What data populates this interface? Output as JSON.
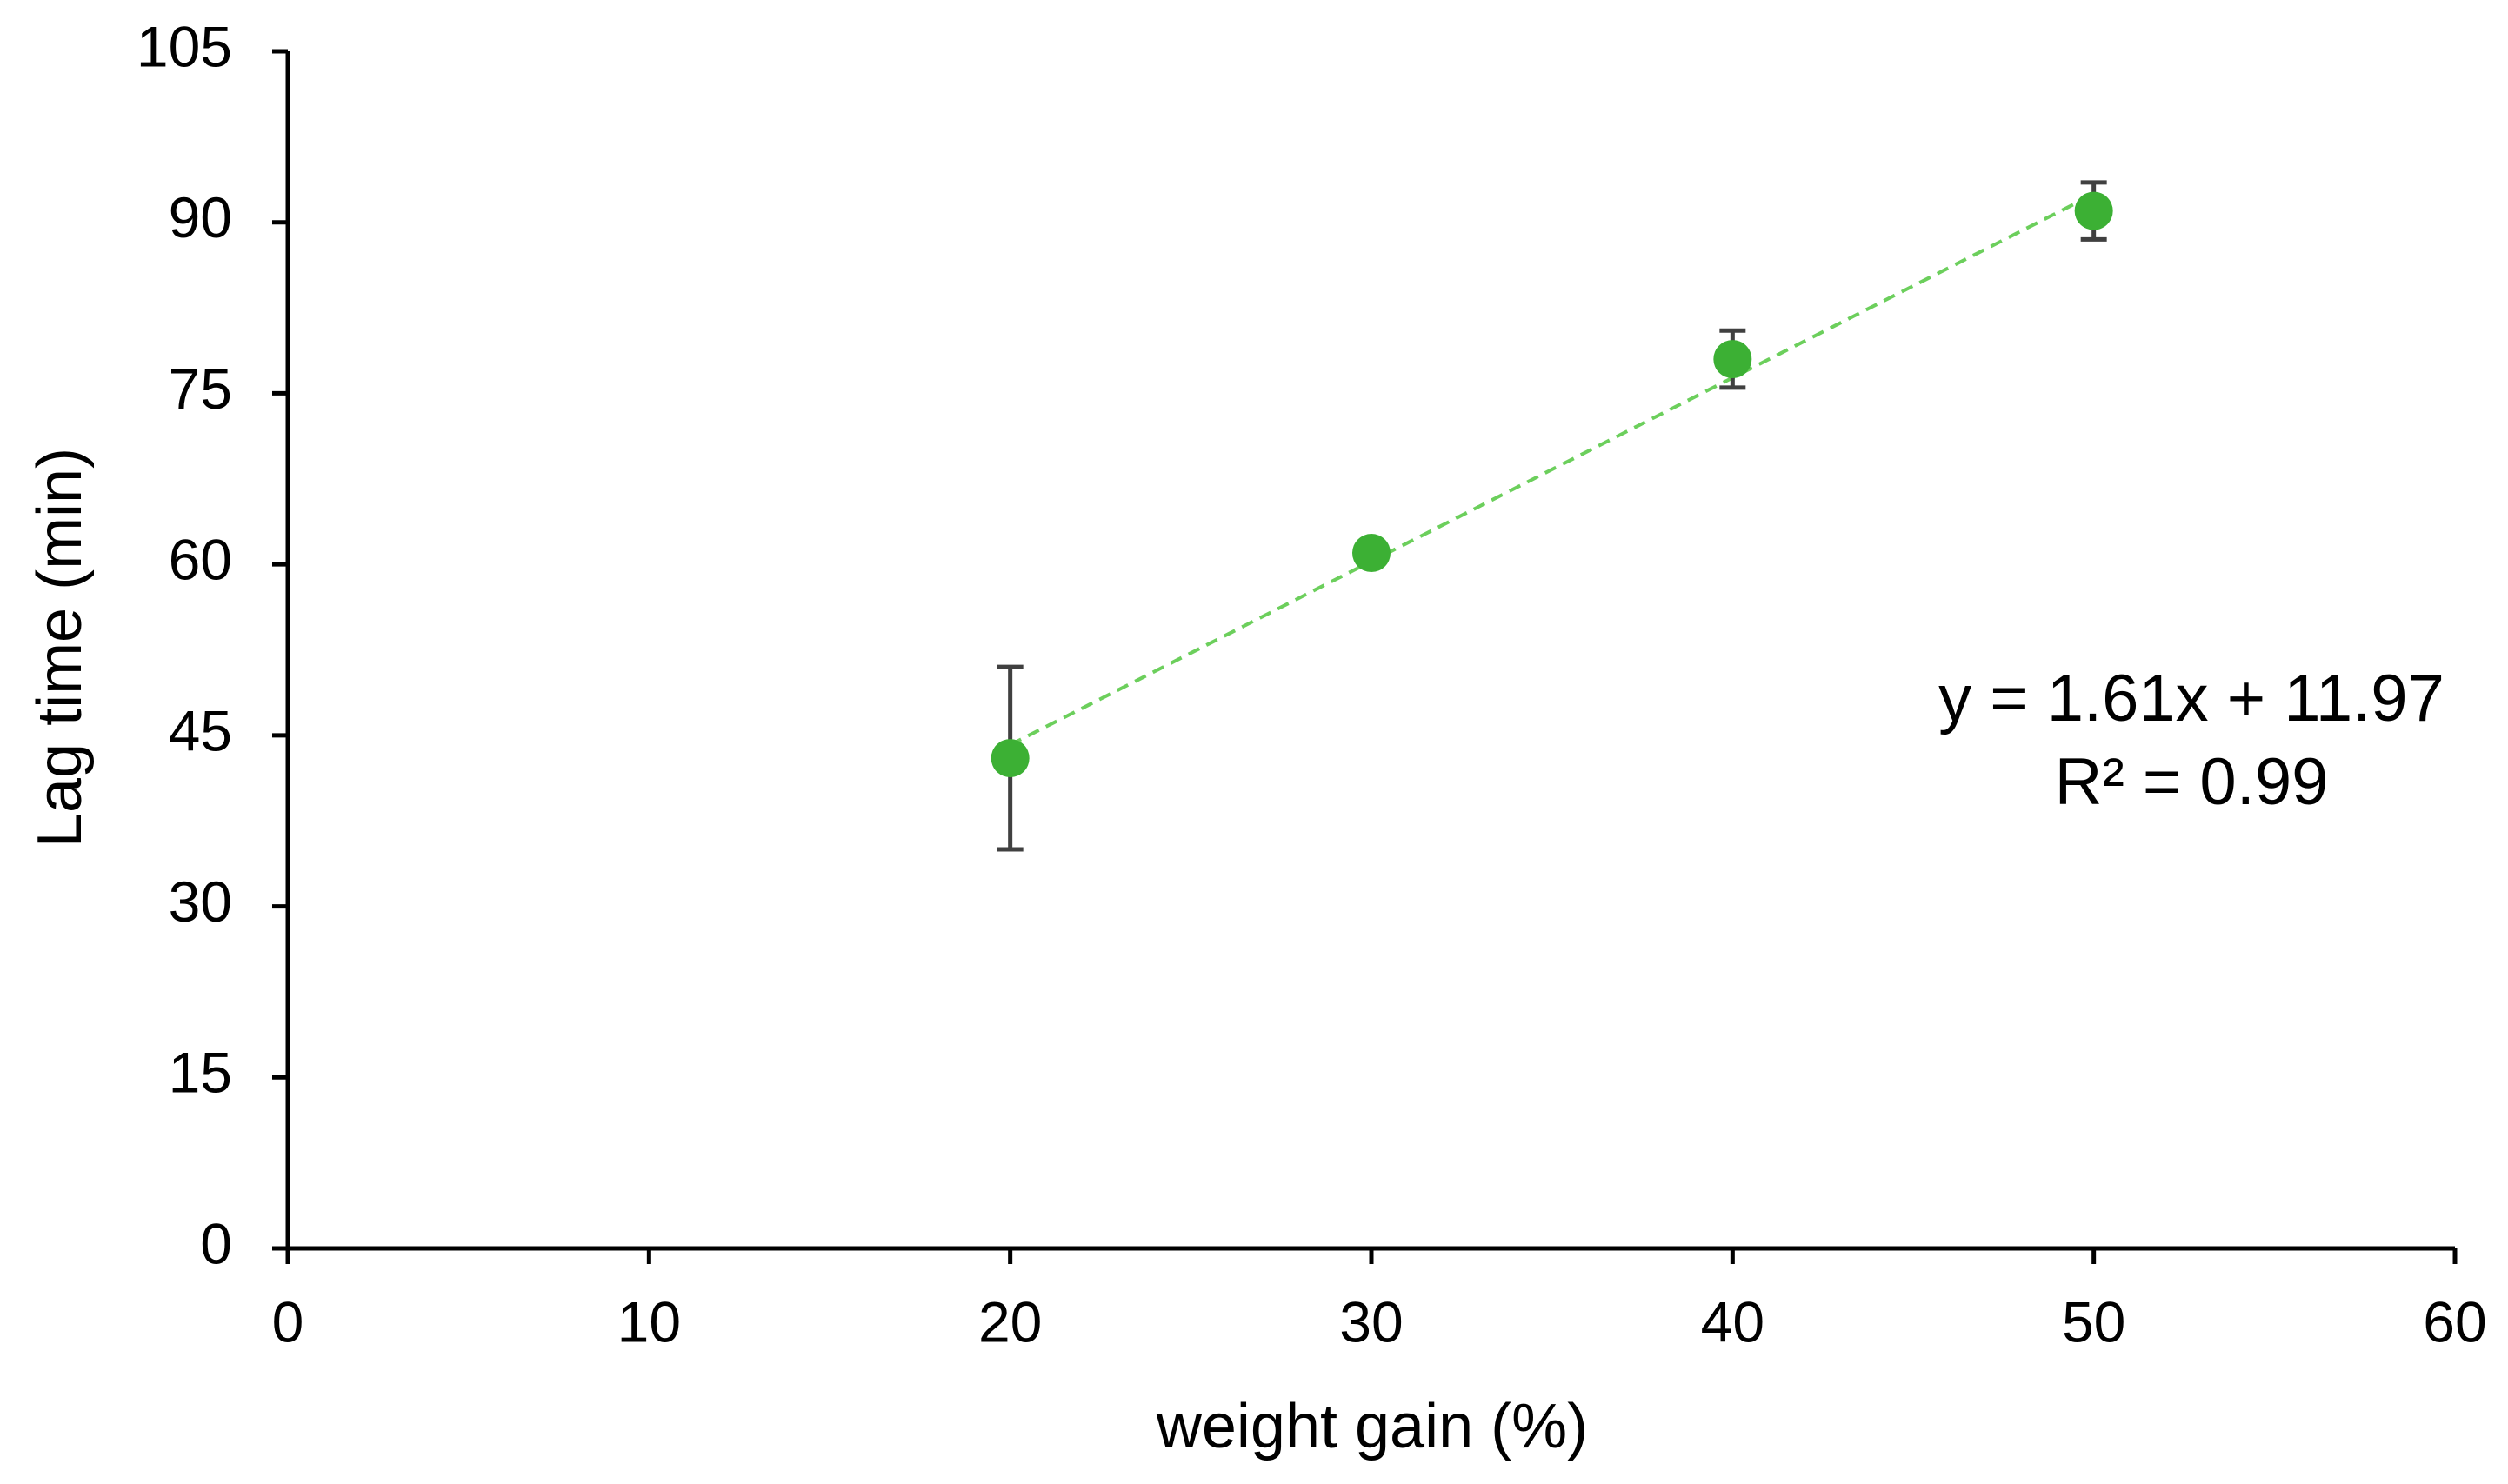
{
  "chart_data": {
    "type": "scatter",
    "x_label": "weight gain (%)",
    "y_label": "Lag time (min)",
    "x": [
      20,
      30,
      40,
      50
    ],
    "series": [
      {
        "values": [
          43,
          61,
          78,
          91
        ],
        "errors": [
          8,
          0.5,
          2.5,
          2.5
        ],
        "color": "#3cb034",
        "error_color": "#404040"
      }
    ],
    "trendline": {
      "slope": 1.61,
      "intercept": 11.97,
      "color": "#6ccf5c",
      "dashed": true
    },
    "annotations": [
      "y = 1.61x + 11.97",
      "R² = 0.99"
    ],
    "xlim": [
      0,
      60
    ],
    "xticks": [
      0,
      10,
      20,
      30,
      40,
      50,
      60
    ],
    "ylim": [
      0,
      105
    ],
    "yticks": [
      0,
      15,
      30,
      45,
      60,
      75,
      90,
      105
    ]
  }
}
